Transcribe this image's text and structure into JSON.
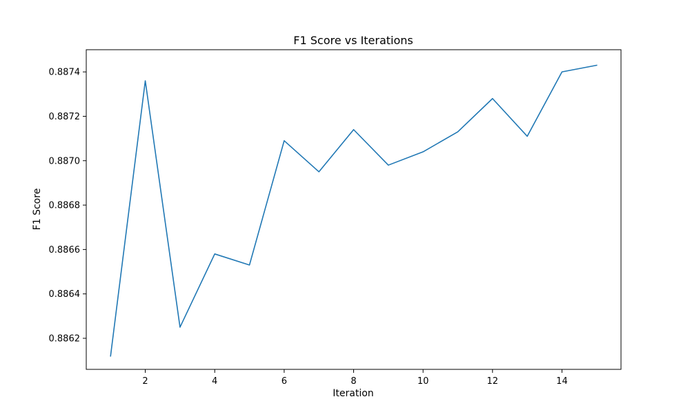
{
  "chart_data": {
    "type": "line",
    "title": "F1 Score vs Iterations",
    "xlabel": "Iteration",
    "ylabel": "F1 Score",
    "xlim": [
      0.3,
      15.7
    ],
    "ylim": [
      0.88606,
      0.8875
    ],
    "xticks": [
      2,
      4,
      6,
      8,
      10,
      12,
      14
    ],
    "yticks": [
      0.8862,
      0.8864,
      0.8866,
      0.8868,
      0.887,
      0.8872,
      0.8874
    ],
    "ytick_labels": [
      "0.8862",
      "0.8864",
      "0.8866",
      "0.8868",
      "0.8870",
      "0.8872",
      "0.8874"
    ],
    "grid": false,
    "series": [
      {
        "color": "#1f77b4",
        "x": [
          1,
          2,
          3,
          4,
          5,
          6,
          7,
          8,
          9,
          10,
          11,
          12,
          13,
          14,
          15
        ],
        "y": [
          0.88612,
          0.88736,
          0.88625,
          0.88658,
          0.88653,
          0.88709,
          0.88695,
          0.88714,
          0.88698,
          0.88704,
          0.88713,
          0.88728,
          0.88711,
          0.8874,
          0.88743
        ]
      }
    ]
  }
}
